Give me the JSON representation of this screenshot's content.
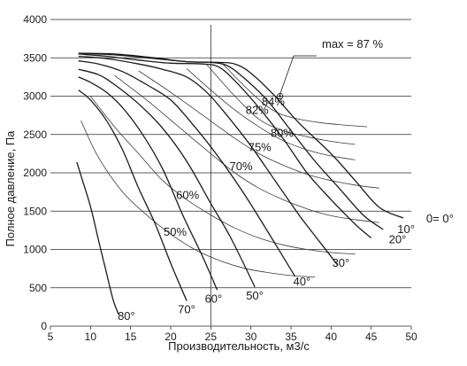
{
  "chart_data": {
    "type": "line",
    "xlabel": "Производительность,  м3/с",
    "ylabel": "Полное давление, Па",
    "xlim": [
      5,
      50
    ],
    "ylim": [
      0,
      4000
    ],
    "x_ticks": [
      "5",
      "10",
      "15",
      "20",
      "25",
      "30",
      "35",
      "40",
      "45",
      "50"
    ],
    "y_ticks": [
      "0",
      "500",
      "1000",
      "1500",
      "2000",
      "2500",
      "3000",
      "3500",
      "4000"
    ],
    "max_label": "max = 87 %",
    "series": [
      {
        "name": "0= 0°",
        "x": [
          8.5,
          13,
          18,
          22,
          26,
          28,
          30,
          33,
          36,
          40,
          43,
          46,
          49
        ],
        "y": [
          3560,
          3550,
          3500,
          3450,
          3440,
          3420,
          3300,
          3000,
          2650,
          2250,
          1900,
          1550,
          1410
        ]
      },
      {
        "name": "10°",
        "x": [
          8.5,
          13,
          18,
          22,
          25,
          27,
          29,
          32,
          35,
          38,
          41,
          44,
          46.5
        ],
        "y": [
          3560,
          3540,
          3490,
          3450,
          3440,
          3400,
          3250,
          2950,
          2550,
          2150,
          1800,
          1450,
          1260
        ]
      },
      {
        "name": "20°",
        "x": [
          8.5,
          12,
          16,
          20,
          24,
          26,
          28,
          31,
          34,
          37,
          40,
          43,
          45
        ],
        "y": [
          3550,
          3520,
          3470,
          3430,
          3420,
          3380,
          3200,
          2850,
          2450,
          2000,
          1650,
          1330,
          1150
        ]
      },
      {
        "name": "30°",
        "x": [
          8.5,
          12,
          16,
          19,
          22,
          24.5,
          27,
          30,
          33,
          36,
          38.5,
          40.8
        ],
        "y": [
          3520,
          3490,
          3420,
          3350,
          3250,
          3050,
          2750,
          2350,
          1900,
          1450,
          1110,
          800
        ]
      },
      {
        "name": "40°",
        "x": [
          8.5,
          11,
          14,
          17,
          20,
          23,
          26,
          29,
          32,
          35.5
        ],
        "y": [
          3460,
          3420,
          3320,
          3150,
          2950,
          2600,
          2200,
          1750,
          1250,
          650
        ]
      },
      {
        "name": "50°",
        "x": [
          8.5,
          11,
          13,
          16,
          19,
          22,
          25,
          27.5,
          30.5
        ],
        "y": [
          3350,
          3280,
          3150,
          2900,
          2580,
          2150,
          1600,
          1150,
          510
        ]
      },
      {
        "name": "60°",
        "x": [
          8.5,
          10,
          12,
          14,
          16.5,
          19,
          21.5,
          24,
          25.8
        ],
        "y": [
          3250,
          3180,
          3050,
          2850,
          2500,
          2050,
          1450,
          900,
          470
        ]
      },
      {
        "name": "70°",
        "x": [
          8.5,
          10,
          12,
          14,
          16,
          18,
          20,
          22
        ],
        "y": [
          3080,
          2950,
          2680,
          2300,
          1800,
          1350,
          820,
          330
        ]
      },
      {
        "name": "80°",
        "x": [
          8.3,
          9,
          10,
          11,
          12,
          12.8,
          13.5
        ],
        "y": [
          2140,
          1900,
          1560,
          1120,
          690,
          350,
          150
        ]
      }
    ],
    "efficiency_contours": [
      {
        "label": "84%",
        "x": [
          26.5,
          30,
          33,
          36,
          39,
          42,
          44.5
        ],
        "y": [
          3420,
          3050,
          2800,
          2700,
          2650,
          2620,
          2600
        ]
      },
      {
        "label": "82%",
        "x": [
          24.5,
          28,
          31,
          34,
          37,
          40,
          43
        ],
        "y": [
          3410,
          3000,
          2700,
          2550,
          2470,
          2410,
          2370
        ]
      },
      {
        "label": "80%",
        "x": [
          22,
          25,
          28,
          31,
          34,
          37,
          40,
          43
        ],
        "y": [
          3360,
          3080,
          2820,
          2600,
          2420,
          2300,
          2220,
          2170
        ]
      },
      {
        "label": "75%",
        "x": [
          16,
          20,
          24,
          28,
          31,
          34,
          37,
          40,
          43,
          46
        ],
        "y": [
          3330,
          3050,
          2750,
          2450,
          2250,
          2100,
          1980,
          1900,
          1840,
          1800
        ]
      },
      {
        "label": "70%",
        "x": [
          13,
          17,
          21,
          25,
          28,
          31,
          34,
          37,
          40,
          43,
          46
        ],
        "y": [
          3270,
          2950,
          2600,
          2250,
          2000,
          1800,
          1650,
          1530,
          1440,
          1390,
          1350
        ]
      },
      {
        "label": "60%",
        "x": [
          10,
          13,
          16,
          19,
          22,
          25,
          28,
          31,
          34,
          37,
          40,
          43
        ],
        "y": [
          3000,
          2600,
          2250,
          1900,
          1650,
          1450,
          1280,
          1150,
          1060,
          1000,
          960,
          940
        ]
      },
      {
        "label": "50%",
        "x": [
          8.8,
          11,
          14,
          17,
          20,
          23,
          26,
          29,
          32,
          35,
          38
        ],
        "y": [
          2680,
          2200,
          1750,
          1450,
          1200,
          1000,
          860,
          760,
          700,
          660,
          640
        ]
      }
    ]
  }
}
